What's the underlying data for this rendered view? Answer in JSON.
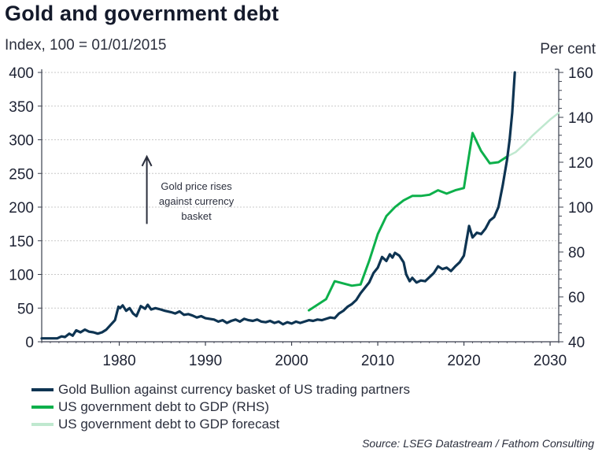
{
  "title": "Gold and government debt",
  "subtitle": "Index, 100 = 01/01/2015",
  "rhs_label": "Per cent",
  "source": "Source: LSEG Datastream / Fathom Consulting",
  "colors": {
    "gold": "#0e3452",
    "debt": "#0db04b",
    "forecast": "#bfe8cf",
    "axis": "#3a3f4d",
    "grid": "#c8c8c8",
    "arrow": "#2b2f3d"
  },
  "chart_data": {
    "type": "line",
    "title": "Gold and government debt",
    "subtitle": "Index, 100 = 01/01/2015",
    "xlabel": "",
    "ylabel": "Index, 100 = 01/01/2015",
    "y2label": "Per cent",
    "xlim": [
      1971,
      2031
    ],
    "ylim": [
      0,
      400
    ],
    "y2lim": [
      40,
      160
    ],
    "grid": true,
    "legend_position": "bottom-left",
    "x_ticks": [
      "1980",
      "1990",
      "2000",
      "2010",
      "2020",
      "2030"
    ],
    "x_tick_values": [
      1980,
      1990,
      2000,
      2010,
      2020,
      2030
    ],
    "y_ticks": [
      "0",
      "50",
      "100",
      "150",
      "200",
      "250",
      "300",
      "350",
      "400"
    ],
    "y_tick_values": [
      0,
      50,
      100,
      150,
      200,
      250,
      300,
      350,
      400
    ],
    "y2_ticks": [
      "40",
      "60",
      "80",
      "100",
      "120",
      "140",
      "160"
    ],
    "y2_tick_values": [
      40,
      60,
      80,
      100,
      120,
      140,
      160
    ],
    "annotation": {
      "text_lines": [
        "Gold price rises",
        "against currency",
        "basket"
      ],
      "arrow": "up",
      "x": 1983.2,
      "y_from": 175,
      "y_to": 275
    },
    "series": [
      {
        "name": "Gold Bullion against currency basket of US trading partners",
        "axis": "left",
        "x": [
          1971.0,
          1972.0,
          1972.8,
          1973.3,
          1973.7,
          1974.2,
          1974.6,
          1975.0,
          1975.5,
          1976.0,
          1976.5,
          1977.0,
          1977.5,
          1978.0,
          1978.5,
          1979.0,
          1979.5,
          1979.9,
          1980.1,
          1980.4,
          1980.8,
          1981.2,
          1981.6,
          1982.0,
          1982.5,
          1983.0,
          1983.3,
          1983.7,
          1984.2,
          1984.8,
          1985.3,
          1986.0,
          1986.5,
          1987.0,
          1987.5,
          1988.0,
          1988.5,
          1989.0,
          1989.5,
          1990.0,
          1990.5,
          1991.0,
          1991.5,
          1992.0,
          1992.5,
          1993.0,
          1993.5,
          1994.0,
          1994.5,
          1995.0,
          1995.5,
          1996.0,
          1996.5,
          1997.0,
          1997.5,
          1998.0,
          1998.5,
          1999.0,
          1999.5,
          2000.0,
          2000.5,
          2001.0,
          2001.5,
          2002.0,
          2002.5,
          2003.0,
          2003.5,
          2004.0,
          2004.5,
          2005.0,
          2005.5,
          2006.0,
          2006.5,
          2007.0,
          2007.5,
          2008.0,
          2008.5,
          2009.0,
          2009.5,
          2010.0,
          2010.5,
          2011.0,
          2011.4,
          2011.7,
          2012.0,
          2012.5,
          2013.0,
          2013.3,
          2013.7,
          2014.0,
          2014.5,
          2015.0,
          2015.5,
          2016.0,
          2016.5,
          2017.0,
          2017.5,
          2018.0,
          2018.5,
          2019.0,
          2019.5,
          2020.0,
          2020.3,
          2020.6,
          2021.0,
          2021.5,
          2022.0,
          2022.5,
          2023.0,
          2023.5,
          2024.0,
          2024.5,
          2025.0,
          2025.3,
          2025.6,
          2025.9
        ],
        "values": [
          5,
          5,
          5,
          8,
          7,
          12,
          9,
          17,
          14,
          18,
          15,
          14,
          12,
          14,
          18,
          25,
          32,
          52,
          50,
          54,
          46,
          50,
          42,
          38,
          53,
          49,
          55,
          48,
          50,
          48,
          46,
          44,
          42,
          45,
          40,
          41,
          39,
          36,
          38,
          35,
          34,
          33,
          30,
          32,
          28,
          31,
          33,
          30,
          34,
          32,
          31,
          33,
          30,
          29,
          31,
          28,
          30,
          26,
          29,
          27,
          30,
          28,
          30,
          32,
          31,
          33,
          32,
          34,
          36,
          35,
          42,
          46,
          52,
          56,
          62,
          72,
          80,
          88,
          102,
          110,
          126,
          120,
          130,
          125,
          132,
          128,
          118,
          100,
          90,
          95,
          88,
          91,
          90,
          96,
          102,
          112,
          108,
          110,
          105,
          112,
          118,
          128,
          150,
          172,
          155,
          162,
          160,
          168,
          180,
          185,
          200,
          232,
          270,
          300,
          340,
          400
        ]
      },
      {
        "name": "US government debt to GDP (RHS)",
        "axis": "right",
        "x": [
          2002.0,
          2004.0,
          2005.0,
          2007.0,
          2008.0,
          2009.0,
          2010.0,
          2011.0,
          2012.0,
          2013.0,
          2014.0,
          2015.0,
          2016.0,
          2017.0,
          2018.0,
          2019.0,
          2020.0,
          2021.0,
          2022.0,
          2023.0,
          2024.0,
          2025.0
        ],
        "values": [
          54,
          59,
          67,
          65,
          65.5,
          76,
          88,
          96,
          100,
          103,
          105,
          105,
          105.5,
          107.5,
          106,
          107.5,
          108.5,
          133,
          125,
          119.5,
          120,
          122.5
        ]
      },
      {
        "name": "US government debt to GDP forecast",
        "axis": "right",
        "x": [
          2025.0,
          2026.0,
          2027.0,
          2028.0,
          2029.0,
          2030.0,
          2031.0
        ],
        "values": [
          122.5,
          124.5,
          128,
          132,
          135.5,
          139,
          142
        ]
      }
    ]
  }
}
